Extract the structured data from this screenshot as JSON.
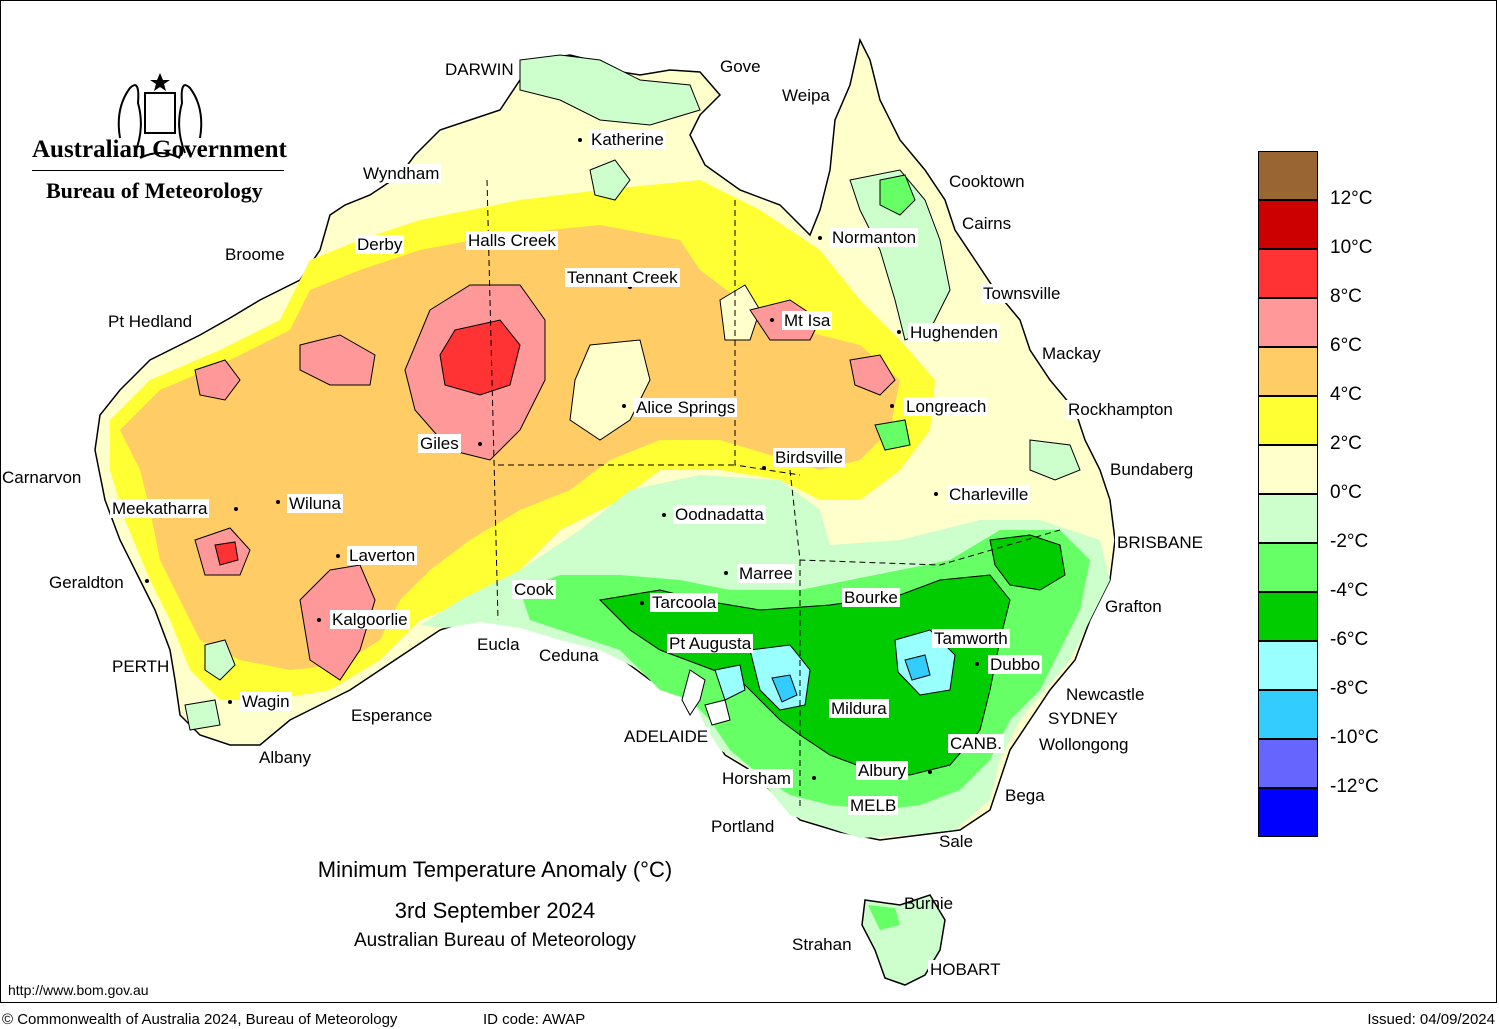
{
  "header": {
    "government": "Australian Government",
    "bureau": "Bureau of Meteorology"
  },
  "title": {
    "line1": "Minimum Temperature Anomaly (°C)",
    "line2": "3rd September 2024",
    "line3": "Australian Bureau of Meteorology"
  },
  "url": "http://www.bom.gov.au",
  "footer": {
    "copyright": "© Commonwealth of Australia 2024, Bureau of Meteorology",
    "id_code": "ID code: AWAP",
    "issued": "Issued: 04/09/2024"
  },
  "legend": {
    "colors": [
      "#996633",
      "#cc0000",
      "#ff3333",
      "#ff9999",
      "#ffcc66",
      "#ffff33",
      "#ffffcc",
      "#ccffcc",
      "#66ff66",
      "#00cc00",
      "#99ffff",
      "#33ccff",
      "#6666ff",
      "#0000ff"
    ],
    "labels": [
      "12°C",
      "10°C",
      "8°C",
      "6°C",
      "4°C",
      "2°C",
      "0°C",
      "-2°C",
      "-4°C",
      "-6°C",
      "-8°C",
      "-10°C",
      "-12°C"
    ]
  },
  "places": {
    "darwin": "DARWIN",
    "gove": "Gove",
    "weipa": "Weipa",
    "katherine": "Katherine",
    "wyndham": "Wyndham",
    "cooktown": "Cooktown",
    "cairns": "Cairns",
    "normanton": "Normanton",
    "broome": "Broome",
    "derby": "Derby",
    "halls_creek": "Halls Creek",
    "tennant_creek": "Tennant Creek",
    "townsville": "Townsville",
    "pt_hedland": "Pt Hedland",
    "mt_isa": "Mt Isa",
    "hughenden": "Hughenden",
    "mackay": "Mackay",
    "alice_springs": "Alice Springs",
    "longreach": "Longreach",
    "rockhampton": "Rockhampton",
    "giles": "Giles",
    "birdsville": "Birdsville",
    "bundaberg": "Bundaberg",
    "carnarvon": "Carnarvon",
    "charleville": "Charleville",
    "meekatharra": "Meekatharra",
    "wiluna": "Wiluna",
    "oodnadatta": "Oodnadatta",
    "brisbane": "BRISBANE",
    "laverton": "Laverton",
    "marree": "Marree",
    "geraldton": "Geraldton",
    "cook": "Cook",
    "tarcoola": "Tarcoola",
    "bourke": "Bourke",
    "grafton": "Grafton",
    "kalgoorlie": "Kalgoorlie",
    "tamworth": "Tamworth",
    "pt_augusta": "Pt Augusta",
    "eucla": "Eucla",
    "ceduna": "Ceduna",
    "dubbo": "Dubbo",
    "perth": "PERTH",
    "newcastle": "Newcastle",
    "wagin": "Wagin",
    "mildura": "Mildura",
    "sydney": "SYDNEY",
    "esperance": "Esperance",
    "adelaide": "ADELAIDE",
    "canberra": "CANB.",
    "wollongong": "Wollongong",
    "albany": "Albany",
    "albury": "Albury",
    "horsham": "Horsham",
    "bega": "Bega",
    "melbourne": "MELB",
    "portland": "Portland",
    "sale": "Sale",
    "burnie": "Burnie",
    "strahan": "Strahan",
    "hobart": "HOBART"
  }
}
